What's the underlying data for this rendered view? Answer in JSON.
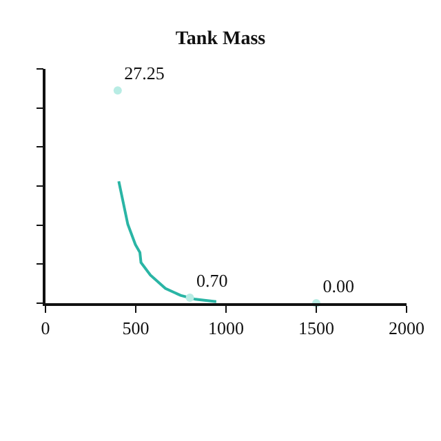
{
  "chart_data": {
    "type": "line",
    "title": "Tank Mass",
    "xlim": [
      0,
      2000
    ],
    "xticks": [
      0,
      500,
      1000,
      1500,
      2000
    ],
    "ylim": [
      0,
      30
    ],
    "yticks": [
      {
        "value": 0,
        "label": null
      },
      {
        "value": 5,
        "label": null
      },
      {
        "value": 10,
        "label": null
      },
      {
        "value": 15,
        "label": null
      },
      {
        "value": 20,
        "label": null
      },
      {
        "value": 25,
        "label": null
      },
      {
        "value": 30,
        "label": null
      }
    ],
    "tick_labels": "x",
    "grid": false,
    "series": [
      {
        "color": "#2ab5a5",
        "x": [
          406,
          456,
          498,
          523,
          529,
          581,
          664,
          748,
          831,
          946
        ],
        "values": [
          15.6,
          10.1,
          7.5,
          6.5,
          5.2,
          3.6,
          1.9,
          1.0,
          0.5,
          0.2
        ]
      },
      {
        "type": "scatter",
        "color": "#b8ece4",
        "marker": "circle",
        "x": [
          400,
          800,
          1500
        ],
        "values": [
          27.25,
          0.7,
          0.0
        ],
        "value_labels": [
          "27.25",
          "0.70",
          "0.00"
        ]
      }
    ]
  }
}
